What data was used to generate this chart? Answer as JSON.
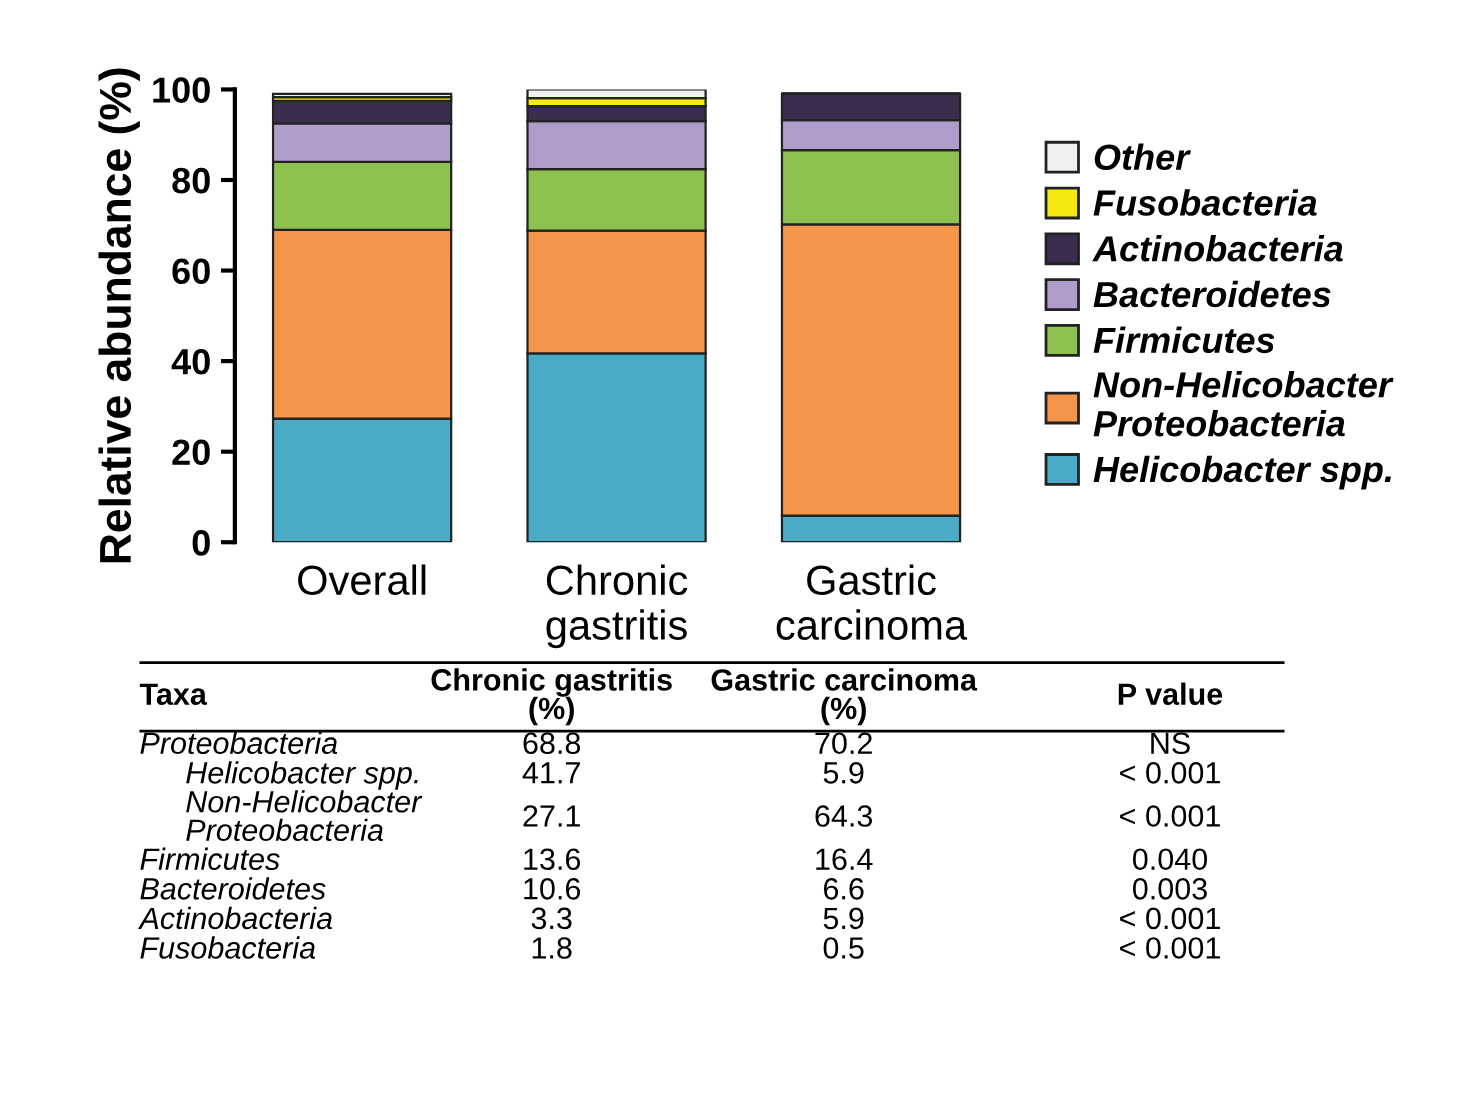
{
  "chart_data": [
    {
      "type": "bar",
      "stacked": true,
      "ylabel": "Relative abundance (%)",
      "categories": [
        "Overall",
        "Chronic\ngastritis",
        "Gastric\ncarcinoma"
      ],
      "series": [
        {
          "name": "Helicobacter spp.",
          "color": "#4aabc6",
          "values": [
            27.3,
            41.7,
            5.9
          ]
        },
        {
          "name": "Non-Helicobacter\nProteobacteria",
          "color": "#f4954a",
          "values": [
            41.7,
            27.1,
            64.3
          ]
        },
        {
          "name": "Firmicutes",
          "color": "#8dc150",
          "values": [
            15,
            13.6,
            16.4
          ]
        },
        {
          "name": "Bacteroidetes",
          "color": "#b09ccb",
          "values": [
            8.5,
            10.6,
            6.6
          ]
        },
        {
          "name": "Actinobacteria",
          "color": "#3a2d4e",
          "values": [
            5,
            3.3,
            5.9
          ]
        },
        {
          "name": "Fusobacteria",
          "color": "#f5e90f",
          "values": [
            0.8,
            1.8,
            null
          ]
        },
        {
          "name": "Other",
          "color": "#f0f0f0",
          "values": [
            0.7,
            1.9,
            null
          ]
        }
      ],
      "ylim": [
        0,
        100
      ],
      "yticks": [
        0,
        20,
        40,
        60,
        80,
        100
      ],
      "legend": "right",
      "grid": false
    },
    {
      "type": "other",
      "annotations": [
        "Taxa",
        "Chronic gastritis\n(%)",
        "Gastric carcinoma\n(%)",
        "P value",
        "Proteobacteria",
        "68.8",
        "70.2",
        "NS",
        "Helicobacter spp.",
        "41.7",
        "5.9",
        "< 0.001",
        "Non-Helicobacter\nProteobacteria",
        "27.1",
        "64.3",
        "< 0.001",
        "Firmicutes",
        "13.6",
        "16.4",
        "0.040",
        "Bacteroidetes",
        "10.6",
        "6.6",
        "0.003",
        "Actinobacteria",
        "3.3",
        "5.9",
        "< 0.001",
        "Fusobacteria",
        "1.8",
        "0.5",
        "< 0.001"
      ]
    }
  ]
}
